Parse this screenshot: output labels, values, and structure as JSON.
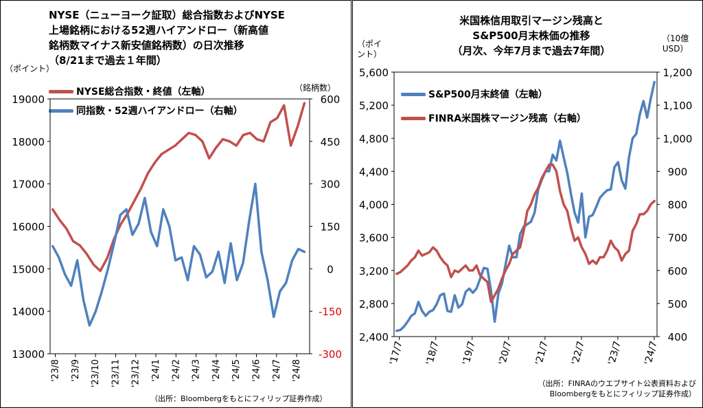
{
  "colors": {
    "red": "#c0504d",
    "blue": "#4f81bd",
    "neg_tick": "#e00000"
  },
  "left": {
    "title": "NYSE（ニューヨーク証取）総合指数およびNYSE\n上場銘柄における52週ハイアンドロー（新高値\n銘柄数マイナス新安値銘柄数）の日次推移\n（8/21まで過去１年間）",
    "left_unit": "（ポイント）",
    "right_unit": "（銘柄数）",
    "legend": [
      "NYSE総合指数・終値（左軸）",
      "同指数・52週ハイアンドロー（右軸）"
    ],
    "source": "（出所：Bloombergをもとにフィリップ証券作成）"
  },
  "right": {
    "title": "米国株信用取引マージン残高と\nS&P500月末株価の推移\n（月次、今年7月まで過去7年間）",
    "left_unit": "（ポイ\nント）",
    "right_unit": "（10億\nUSD）",
    "legend": [
      "S&P500月末終値（左軸）",
      "FINRA米国株マージン残高（右軸）"
    ],
    "source": "（出所：FINRAのウエブサイト公表資料および\nBloombergをもとにフィリップ証券作成）"
  },
  "chart_data": [
    {
      "type": "line",
      "x_labels": [
        "'23/8",
        "'23/9",
        "'23/10",
        "'23/11",
        "'23/12",
        "'24/1",
        "'24/2",
        "'24/3",
        "'24/4",
        "'24/5",
        "'24/6",
        "'24/7",
        "'24/8"
      ],
      "y_left_ticks": [
        "13000",
        "14000",
        "15000",
        "16000",
        "17000",
        "18000",
        "19000"
      ],
      "y_right_ticks": [
        "-300",
        "-150",
        "0",
        "150",
        "300",
        "450",
        "600"
      ],
      "ylim_left": [
        13000,
        19000
      ],
      "ylim_right": [
        -300,
        600
      ],
      "series": [
        {
          "name": "NYSE総合指数・終値（左軸）",
          "axis": "left",
          "color": "red",
          "values": [
            16400,
            16150,
            15950,
            15650,
            15550,
            15350,
            15100,
            14950,
            15250,
            15700,
            16050,
            16300,
            16600,
            16900,
            17250,
            17500,
            17700,
            17800,
            17900,
            18050,
            18200,
            18150,
            18000,
            17600,
            17850,
            18050,
            18000,
            17900,
            18150,
            18200,
            18050,
            18000,
            18450,
            18550,
            18850,
            17900,
            18350,
            18900
          ]
        },
        {
          "name": "同指数・52週ハイアンドロー（右軸）",
          "axis": "right",
          "color": "blue",
          "values": [
            80,
            40,
            -20,
            -60,
            30,
            -110,
            -200,
            -150,
            -80,
            0,
            90,
            190,
            210,
            120,
            160,
            250,
            130,
            80,
            210,
            150,
            30,
            40,
            -40,
            80,
            50,
            -30,
            -10,
            60,
            -50,
            90,
            -40,
            20,
            170,
            300,
            60,
            -40,
            -170,
            -80,
            -50,
            30,
            70,
            60
          ]
        }
      ]
    },
    {
      "type": "line",
      "x_labels": [
        "'17/7",
        "'18/7",
        "'19/7",
        "'20/7",
        "'21/7",
        "'22/7",
        "'23/7",
        "'24/7"
      ],
      "y_left_ticks": [
        "2,400",
        "2,800",
        "3,200",
        "3,600",
        "4,000",
        "4,400",
        "4,800",
        "5,200",
        "5,600"
      ],
      "y_right_ticks": [
        "400",
        "500",
        "600",
        "700",
        "800",
        "900",
        "1,000",
        "1,100",
        "1,200"
      ],
      "ylim_left": [
        2400,
        5600
      ],
      "ylim_right": [
        400,
        1200
      ],
      "series": [
        {
          "name": "S&P500月末終値（左軸）",
          "axis": "left",
          "color": "blue",
          "values": [
            2470,
            2480,
            2520,
            2580,
            2650,
            2680,
            2820,
            2710,
            2650,
            2700,
            2720,
            2790,
            2900,
            2920,
            2710,
            2700,
            2900,
            2750,
            2790,
            2940,
            2980,
            2930,
            2980,
            3100,
            3230,
            3220,
            2950,
            2580,
            2920,
            3040,
            3270,
            3500,
            3360,
            3360,
            3640,
            3730,
            3760,
            3790,
            3900,
            4180,
            4300,
            4400,
            4400,
            4600,
            4530,
            4770,
            4570,
            4380,
            4130,
            3900,
            3780,
            4130,
            3600,
            3850,
            3870,
            3970,
            4080,
            4130,
            4170,
            4180,
            4450,
            4510,
            4290,
            4190,
            4570,
            4800,
            4850,
            5090,
            5250,
            5050,
            5280,
            5480
          ]
        },
        {
          "name": "FINRA米国株マージン残高（右軸）",
          "axis": "right",
          "color": "red",
          "values": [
            590,
            595,
            605,
            615,
            630,
            640,
            660,
            645,
            650,
            655,
            670,
            660,
            640,
            625,
            615,
            580,
            600,
            595,
            605,
            615,
            600,
            600,
            615,
            585,
            575,
            565,
            505,
            525,
            545,
            575,
            600,
            620,
            650,
            660,
            670,
            720,
            780,
            800,
            830,
            850,
            880,
            900,
            920,
            920,
            900,
            840,
            800,
            780,
            730,
            690,
            700,
            670,
            650,
            620,
            630,
            620,
            640,
            640,
            660,
            690,
            670,
            660,
            630,
            650,
            660,
            720,
            740,
            770,
            770,
            780,
            800,
            810
          ]
        }
      ]
    }
  ]
}
